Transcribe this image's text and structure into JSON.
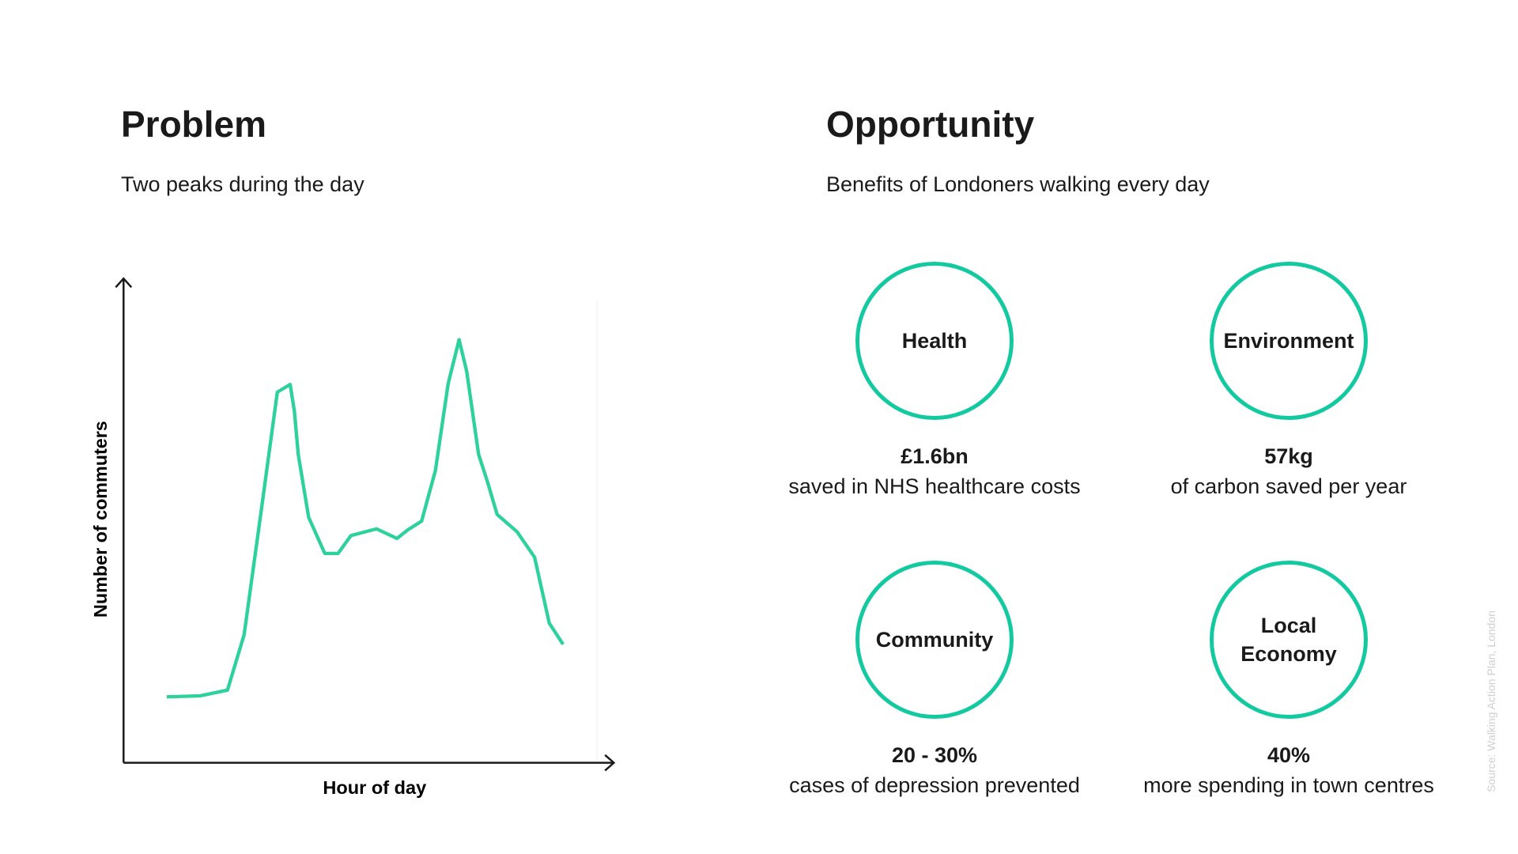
{
  "problem": {
    "title": "Problem",
    "subtitle": "Two peaks during the day",
    "chart_data": {
      "type": "line",
      "x_label": "Hour of day",
      "y_label": "Number of commuters",
      "color": "#2dd19c",
      "xlim": [
        0,
        100
      ],
      "ylim": [
        0,
        100
      ],
      "x": [
        9.1,
        16.1,
        21.9,
        25.4,
        28.9,
        32.4,
        35.1,
        36.0,
        36.8,
        39.0,
        42.4,
        45.2,
        47.9,
        53.3,
        57.6,
        59.9,
        62.8,
        65.7,
        68.4,
        70.7,
        72.3,
        74.8,
        76.7,
        78.7,
        82.9,
        86.6,
        89.7,
        92.6
      ],
      "values": [
        13.7,
        13.9,
        15.1,
        26.6,
        51.6,
        77.0,
        78.6,
        73.0,
        64.1,
        51.0,
        43.5,
        43.5,
        47.2,
        48.6,
        46.6,
        48.4,
        50.2,
        60.7,
        78.8,
        87.9,
        81.3,
        64.1,
        58.3,
        51.6,
        48.0,
        42.7,
        29.0,
        24.6
      ]
    }
  },
  "opportunity": {
    "title": "Opportunity",
    "subtitle": "Benefits of Londoners walking every day",
    "benefits": [
      {
        "label": "Health",
        "value": "£1.6bn",
        "description": "saved in NHS healthcare costs"
      },
      {
        "label": "Environment",
        "value": "57kg",
        "description": "of carbon saved per year"
      },
      {
        "label": "Community",
        "value": "20 - 30%",
        "description": "cases of depression prevented"
      },
      {
        "label": "Local Economy",
        "value": "40%",
        "description": "more spending in town centres"
      }
    ]
  },
  "source": "Source: Walking Action Plan, London"
}
